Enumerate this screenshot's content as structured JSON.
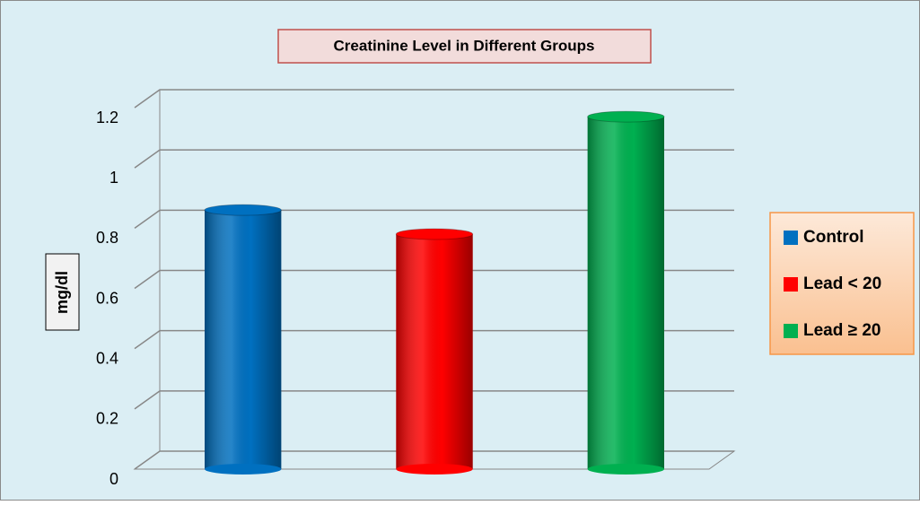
{
  "chart_data": {
    "type": "bar3d",
    "title": "Creatinine Level in Different Groups",
    "y_label": "mg/dl",
    "categories": [
      null
    ],
    "series": [
      {
        "name": "Control",
        "color": "#0070c0",
        "values": [
          0.86
        ]
      },
      {
        "name": "Lead < 20",
        "color": "#ff0000",
        "values": [
          0.78
        ]
      },
      {
        "name": "Lead ≥ 20",
        "color": "#00b050",
        "values": [
          1.17
        ]
      }
    ],
    "ylim": [
      0,
      1.2
    ],
    "yticks": [
      0,
      0.2,
      0.4,
      0.6,
      0.8,
      1,
      1.2
    ],
    "grid": true,
    "legend": "right"
  }
}
